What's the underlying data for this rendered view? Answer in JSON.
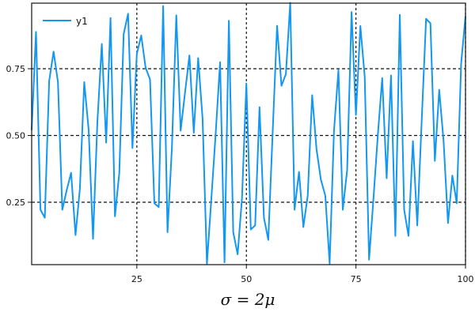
{
  "chart_data": {
    "type": "line",
    "title": "",
    "xlabel": "σ = 2μ",
    "ylabel": "",
    "xlim": [
      1,
      100
    ],
    "ylim": [
      0.015,
      0.995
    ],
    "grid": true,
    "grid_style": "dotted black at tick positions",
    "legend_position": "upper left",
    "x_ticks": [
      25,
      50,
      75,
      100
    ],
    "x_tick_labels": [
      "25",
      "50",
      "75",
      "100"
    ],
    "y_ticks": [
      0.25,
      0.5,
      0.75
    ],
    "y_tick_labels": [
      "0.25",
      "0.50",
      "0.75"
    ],
    "series": [
      {
        "name": "y1",
        "color": "#1497ef",
        "x": [
          1,
          2,
          3,
          4,
          5,
          6,
          7,
          8,
          9,
          10,
          11,
          12,
          13,
          14,
          15,
          16,
          17,
          18,
          19,
          20,
          21,
          22,
          23,
          24,
          25,
          26,
          27,
          28,
          29,
          30,
          31,
          32,
          33,
          34,
          35,
          36,
          37,
          38,
          39,
          40,
          41,
          42,
          43,
          44,
          45,
          46,
          47,
          48,
          49,
          50,
          51,
          52,
          53,
          54,
          55,
          56,
          57,
          58,
          59,
          60,
          61,
          62,
          63,
          64,
          65,
          66,
          67,
          68,
          69,
          70,
          71,
          72,
          73,
          74,
          75,
          76,
          77,
          78,
          79,
          80,
          81,
          82,
          83,
          84,
          85,
          86,
          87,
          88,
          89,
          90,
          91,
          92,
          93,
          94,
          95,
          96,
          97,
          98,
          99,
          100
        ],
        "values": [
          0.52,
          0.888,
          0.222,
          0.192,
          0.704,
          0.814,
          0.7,
          0.222,
          0.296,
          0.36,
          0.127,
          0.3,
          0.7,
          0.52,
          0.113,
          0.55,
          0.843,
          0.473,
          0.94,
          0.197,
          0.36,
          0.88,
          0.956,
          0.453,
          0.805,
          0.875,
          0.754,
          0.71,
          0.246,
          0.232,
          0.985,
          0.138,
          0.45,
          0.95,
          0.518,
          0.66,
          0.8,
          0.51,
          0.79,
          0.562,
          0.02,
          0.26,
          0.51,
          0.775,
          0.025,
          0.93,
          0.138,
          0.055,
          0.266,
          0.695,
          0.148,
          0.163,
          0.606,
          0.192,
          0.109,
          0.51,
          0.911,
          0.686,
          0.73,
          0.997,
          0.222,
          0.364,
          0.157,
          0.275,
          0.651,
          0.449,
          0.335,
          0.275,
          0.02,
          0.518,
          0.745,
          0.222,
          0.37,
          0.962,
          0.577,
          0.91,
          0.72,
          0.035,
          0.266,
          0.503,
          0.715,
          0.34,
          0.725,
          0.124,
          0.952,
          0.222,
          0.124,
          0.479,
          0.163,
          0.55,
          0.937,
          0.92,
          0.405,
          0.671,
          0.48,
          0.172,
          0.35,
          0.246,
          0.77,
          0.947
        ]
      }
    ]
  },
  "legend": {
    "items": [
      {
        "label": "y1",
        "color": "#1497ef"
      }
    ]
  },
  "axes": {
    "xlabel": "σ = 2μ",
    "x_tick_labels": [
      "25",
      "50",
      "75",
      "100"
    ],
    "y_tick_labels": [
      "0.25",
      "0.50",
      "0.75"
    ]
  }
}
